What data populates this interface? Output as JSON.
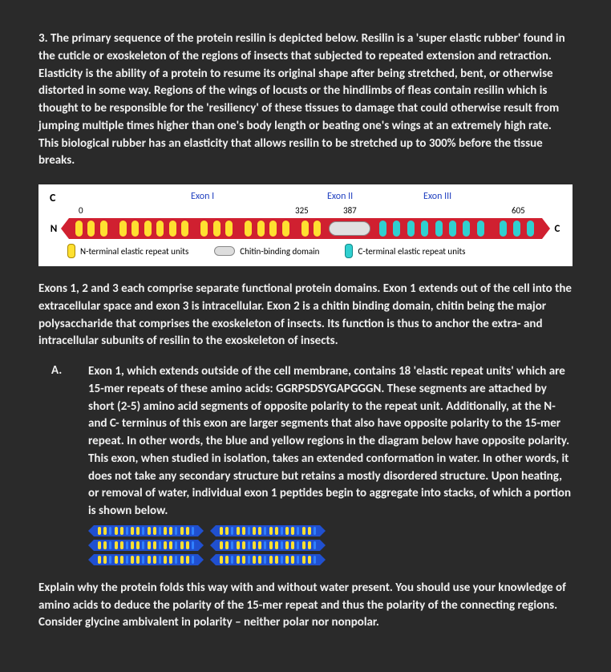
{
  "intro": "3. The primary sequence of the protein resilin is depicted below.  Resilin is a 'super elastic rubber' found in the cuticle or exoskeleton of the regions of insects that subjected to repeated extension and retraction.  Elasticity is the ability of a protein to resume its original shape after being stretched, bent, or otherwise distorted in some way.  Regions of the wings of locusts or the hindlimbs of fleas contain resilin which is thought to be responsible for the 'resiliency' of these tissues to damage that could otherwise result from jumping multiple times higher than one's body length or beating one's wings at an extremely high rate.  This biological rubber has an elasticity that allows resilin to be stretched up to 300% before the tissue breaks.",
  "diagram1": {
    "panel_label": "C",
    "exon1_label": "Exon I",
    "exon2_label": "Exon II",
    "exon3_label": "Exon III",
    "num0": "0",
    "num325": "325",
    "num387": "387",
    "num605": "605",
    "n_label": "N",
    "c_label": "C",
    "exon1_units": 18,
    "exon3_units": 11,
    "bar_color": "#d02030",
    "yellow_unit_color": "#ffe030",
    "cyan_unit_color": "#30d0d0",
    "legend": {
      "nterm": "N-terminal elastic repeat units",
      "chitin": "Chitin-binding domain",
      "cterm": "C-terminal elastic repeat units"
    }
  },
  "mid": "Exons 1, 2 and 3 each comprise separate functional protein domains.  Exon 1 extends out of the cell into the extracellular space and exon 3 is intracellular.   Exon 2 is a chitin binding domain, chitin being the major polysaccharide that comprises the exoskeleton of insects.  Its function is thus to anchor the extra- and intracellular subunits of resilin to the exoskeleton of insects.",
  "partA": {
    "label": "A.",
    "text": "Exon 1, which extends outside of the cell membrane, contains 18 'elastic repeat units' which are 15-mer repeats of these amino acids: GGRPSDSYGAPGGGN.   These segments are attached by short (2-5) amino acid segments of opposite polarity to the repeat unit.  Additionally, at the N- and C- terminus of this exon are larger segments that also have opposite polarity to the 15-mer repeat.  In other words, the blue and yellow regions in the diagram below have opposite polarity.  This exon, when studied in isolation, takes an extended conformation in water.  In other words, it does not take any secondary structure but retains a mostly disordered structure.  Upon heating, or removal of water, individual exon 1 peptides begin to aggregate into stacks, of which a portion is shown below."
  },
  "diagram2": {
    "rows": 3,
    "segs_per_row": 2,
    "units_per_seg": 18,
    "bar_color": "#2050d0",
    "yellow": "#ffe030"
  },
  "final": "Explain why the protein folds this way with and without water present.  You should use your knowledge of amino acids to deduce the polarity of the 15-mer repeat and thus the polarity of the connecting regions.  Consider glycine ambivalent in polarity – neither polar nor nonpolar."
}
